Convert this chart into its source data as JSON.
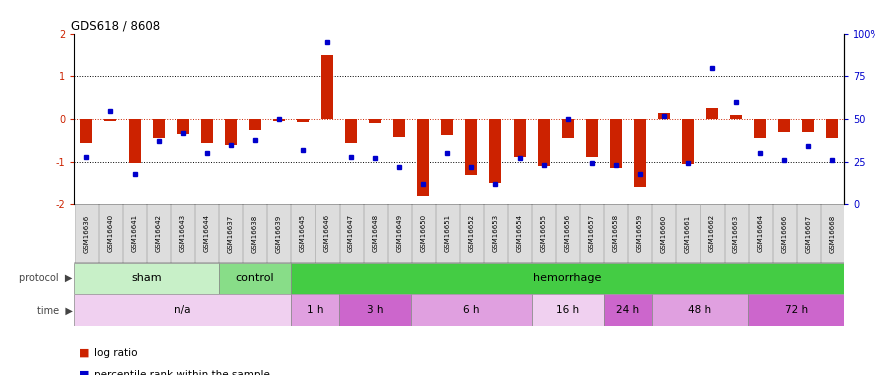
{
  "title": "GDS618 / 8608",
  "samples": [
    "GSM16636",
    "GSM16640",
    "GSM16641",
    "GSM16642",
    "GSM16643",
    "GSM16644",
    "GSM16637",
    "GSM16638",
    "GSM16639",
    "GSM16645",
    "GSM16646",
    "GSM16647",
    "GSM16648",
    "GSM16649",
    "GSM16650",
    "GSM16651",
    "GSM16652",
    "GSM16653",
    "GSM16654",
    "GSM16655",
    "GSM16656",
    "GSM16657",
    "GSM16658",
    "GSM16659",
    "GSM16660",
    "GSM16661",
    "GSM16662",
    "GSM16663",
    "GSM16664",
    "GSM16666",
    "GSM16667",
    "GSM16668"
  ],
  "log_ratio": [
    -0.55,
    -0.05,
    -1.02,
    -0.45,
    -0.35,
    -0.55,
    -0.6,
    -0.25,
    -0.05,
    -0.08,
    1.5,
    -0.55,
    -0.1,
    -0.42,
    -1.8,
    -0.38,
    -1.3,
    -1.5,
    -0.9,
    -1.1,
    -0.45,
    -0.9,
    -1.15,
    -1.6,
    0.15,
    -1.05,
    0.25,
    0.1,
    -0.45,
    -0.3,
    -0.3,
    -0.45
  ],
  "percentile": [
    28,
    55,
    18,
    37,
    42,
    30,
    35,
    38,
    50,
    32,
    95,
    28,
    27,
    22,
    12,
    30,
    22,
    12,
    27,
    23,
    50,
    24,
    23,
    18,
    52,
    24,
    80,
    60,
    30,
    26,
    34,
    26
  ],
  "protocol_groups": [
    {
      "label": "sham",
      "start": 0,
      "end": 5,
      "color": "#c8f0c8"
    },
    {
      "label": "control",
      "start": 6,
      "end": 8,
      "color": "#88dd88"
    },
    {
      "label": "hemorrhage",
      "start": 9,
      "end": 31,
      "color": "#44cc44"
    }
  ],
  "time_groups": [
    {
      "label": "n/a",
      "start": 0,
      "end": 8,
      "color": "#f0d0f0"
    },
    {
      "label": "1 h",
      "start": 9,
      "end": 10,
      "color": "#e0a0e0"
    },
    {
      "label": "3 h",
      "start": 11,
      "end": 13,
      "color": "#cc66cc"
    },
    {
      "label": "6 h",
      "start": 14,
      "end": 18,
      "color": "#e0a0e0"
    },
    {
      "label": "16 h",
      "start": 19,
      "end": 21,
      "color": "#f0d0f0"
    },
    {
      "label": "24 h",
      "start": 22,
      "end": 23,
      "color": "#cc66cc"
    },
    {
      "label": "48 h",
      "start": 24,
      "end": 27,
      "color": "#e0a0e0"
    },
    {
      "label": "72 h",
      "start": 28,
      "end": 31,
      "color": "#cc66cc"
    }
  ],
  "bar_color": "#cc2200",
  "scatter_color": "#0000cc",
  "ylim": [
    -2,
    2
  ],
  "bg_color": "#ffffff",
  "sample_box_color": "#cccccc",
  "label_color_left": "#888888"
}
